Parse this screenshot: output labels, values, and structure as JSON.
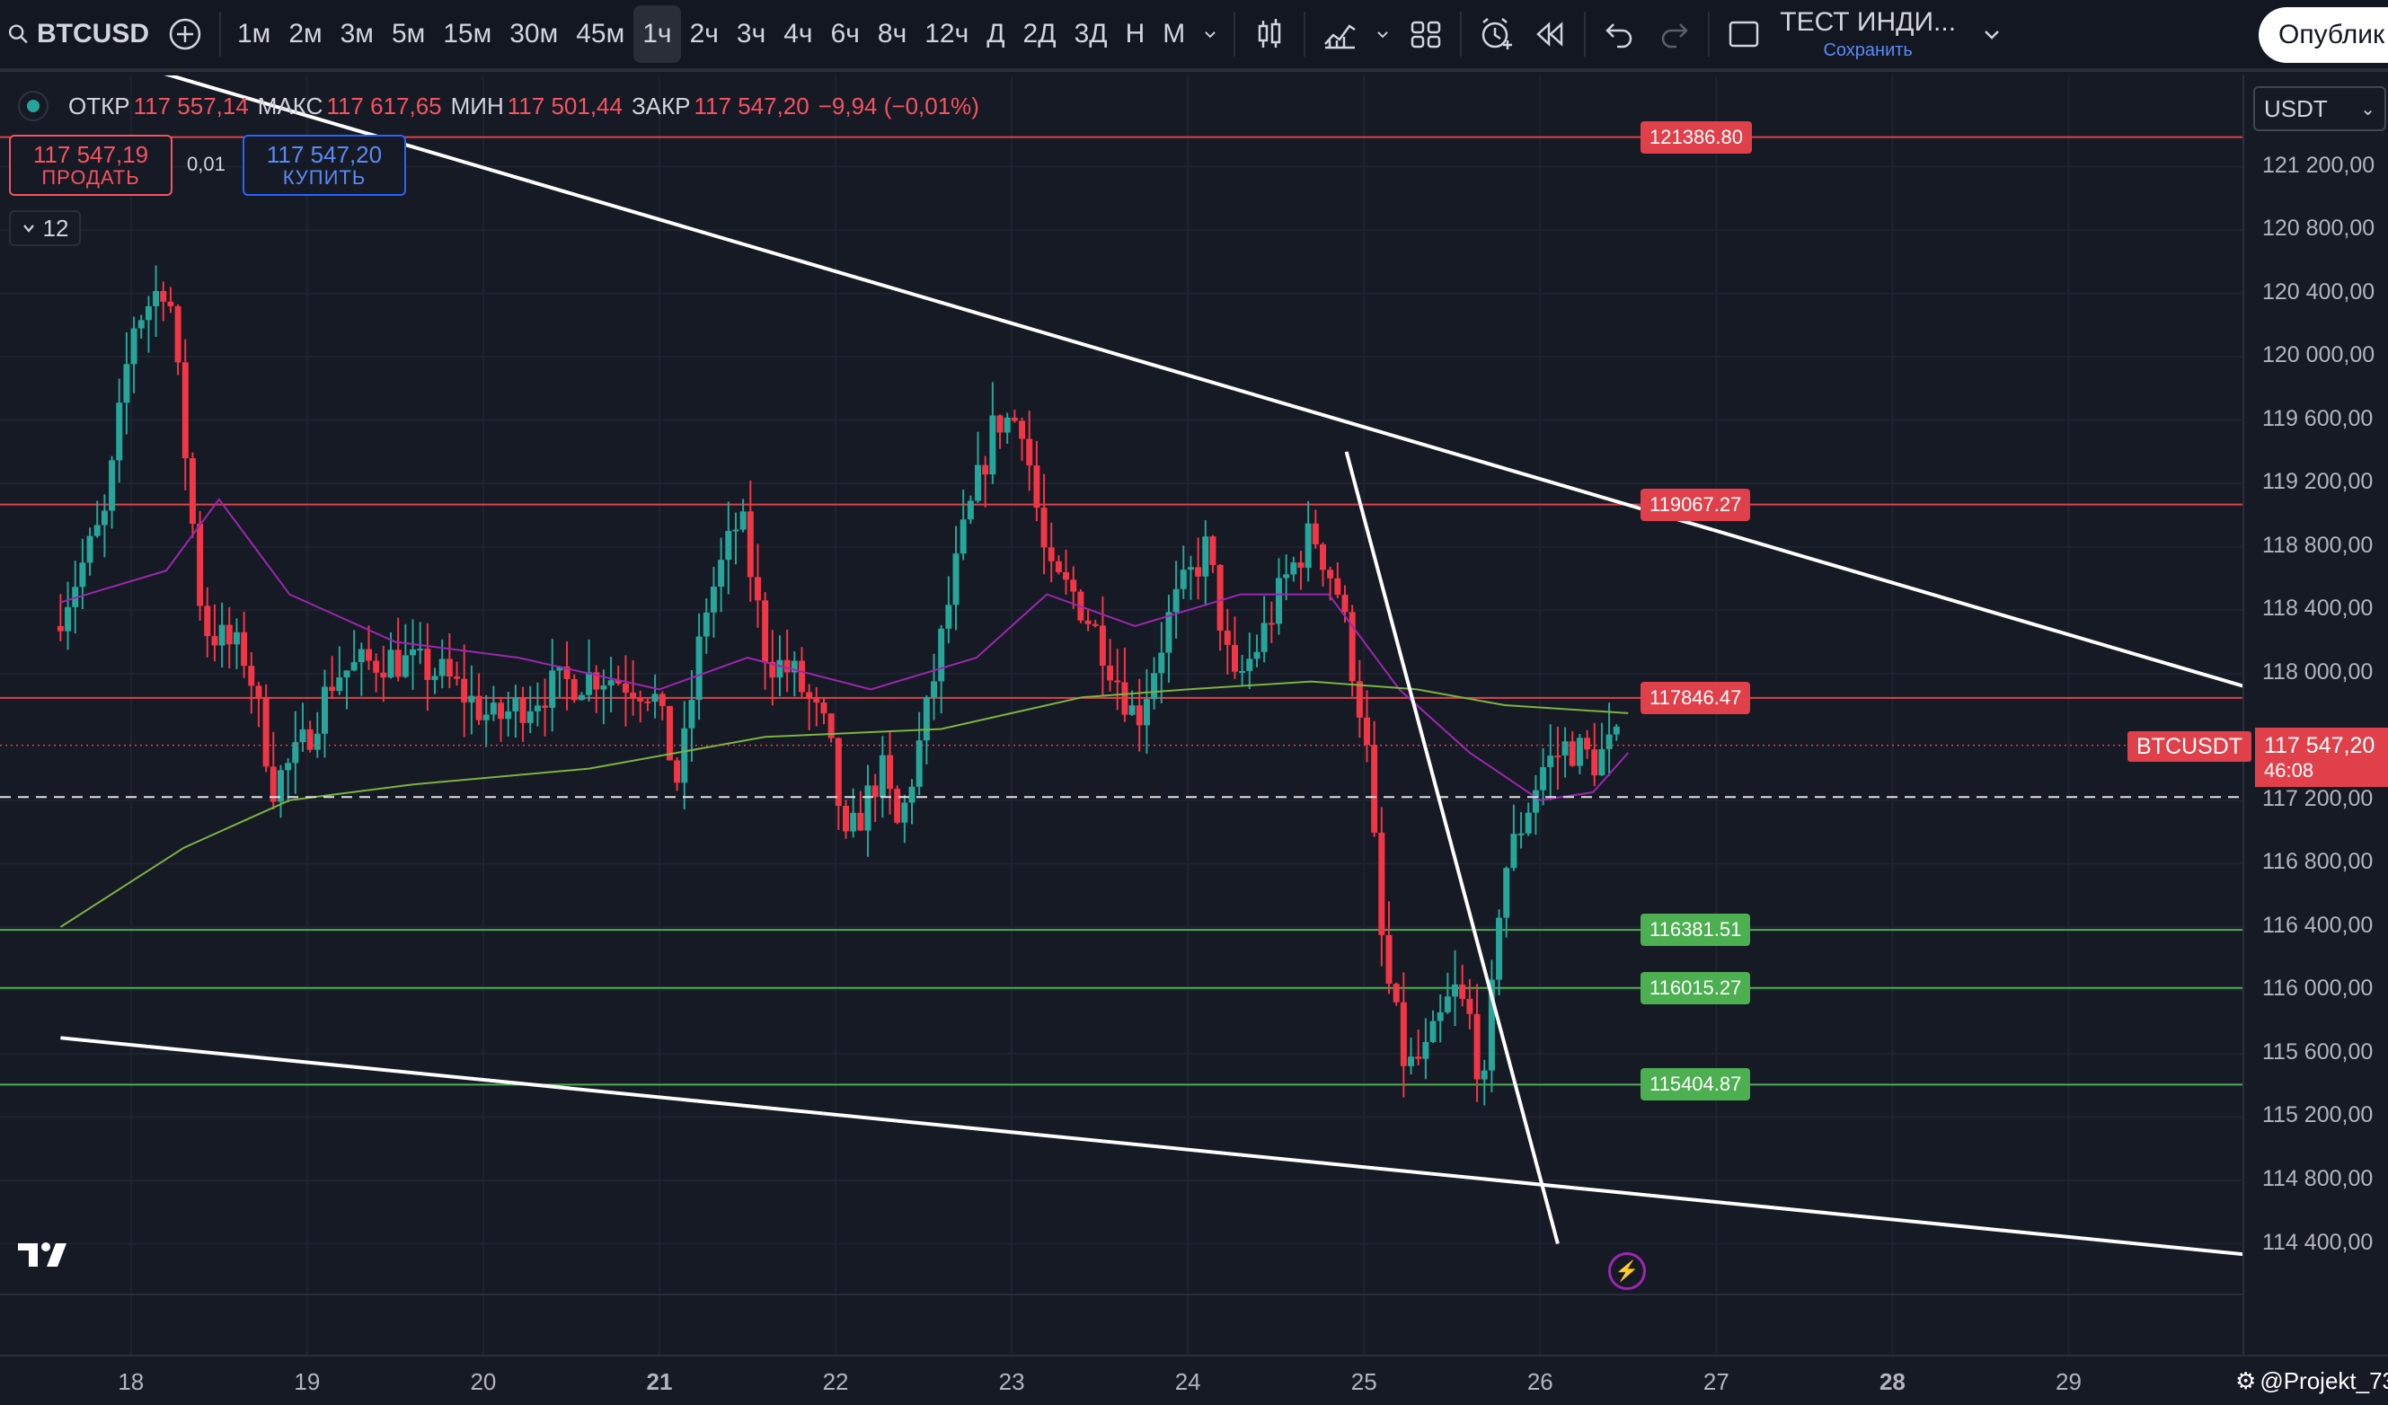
{
  "toolbar": {
    "symbol": "BTCUSD",
    "intervals": [
      "1м",
      "2м",
      "3м",
      "5м",
      "15м",
      "30м",
      "45м",
      "1ч",
      "2ч",
      "3ч",
      "4ч",
      "6ч",
      "8ч",
      "12ч",
      "Д",
      "2Д",
      "3Д",
      "Н",
      "М"
    ],
    "active_interval": "1ч",
    "layout_name": "ТЕСТ ИНДИ...",
    "layout_save": "Сохранить",
    "publish_label": "Опублик",
    "icons": [
      "search-icon",
      "add-compare-icon",
      "interval-dropdown-icon",
      "candles-icon",
      "indicators-icon",
      "indicators-dropdown-icon",
      "templates-icon",
      "alert-icon",
      "replay-icon",
      "undo-icon",
      "redo-icon",
      "fullscreen-icon",
      "layout-dropdown-icon"
    ]
  },
  "legend": {
    "open_label": "ОТКР",
    "open": "117 557,14",
    "high_label": "МАКС",
    "high": "117 617,65",
    "low_label": "МИН",
    "low": "117 501,44",
    "close_label": "ЗАКР",
    "close": "117 547,20",
    "change": "−9,94 (−0,01%)"
  },
  "trade": {
    "sell_price": "117 547,19",
    "sell_label": "ПРОДАТЬ",
    "buy_price": "117 547,20",
    "buy_label": "КУПИТЬ",
    "spread": "0,01"
  },
  "indicators_collapsed": {
    "count": "12"
  },
  "currency": "USDT",
  "price_scale": [
    "121 200,00",
    "120 800,00",
    "120 400,00",
    "120 000,00",
    "119 600,00",
    "119 200,00",
    "118 800,00",
    "118 400,00",
    "118 000,00",
    "117 200,00",
    "116 800,00",
    "116 400,00",
    "116 000,00",
    "115 600,00",
    "115 200,00",
    "114 800,00",
    "114 400,00"
  ],
  "time_scale": [
    "18",
    "19",
    "20",
    "21",
    "22",
    "23",
    "24",
    "25",
    "26",
    "27",
    "28",
    "29"
  ],
  "levels": [
    {
      "price": "121386.80",
      "color": "red"
    },
    {
      "price": "119067.27",
      "color": "red"
    },
    {
      "price": "117846.47",
      "color": "red"
    },
    {
      "price": "116381.51",
      "color": "green"
    },
    {
      "price": "116015.27",
      "color": "green"
    },
    {
      "price": "115404.87",
      "color": "green"
    }
  ],
  "last_price": {
    "symbol": "BTCUSDT",
    "price": "117 547,20",
    "countdown": "46:08"
  },
  "watermark": "@Projekt_73",
  "colors": {
    "up": "#26a69a",
    "down": "#f23645",
    "red_level": "#e0404a",
    "green_level": "#4caf50",
    "ma_fast": "#9c27b0",
    "ma_slow": "#7cb342",
    "trendline": "#ffffff"
  },
  "chart_data": {
    "type": "candlestick",
    "symbol": "BTCUSD",
    "interval": "1ч",
    "ylim": [
      114200,
      121500
    ],
    "x_ticks": [
      "18",
      "19",
      "20",
      "21",
      "22",
      "23",
      "24",
      "25",
      "26",
      "27",
      "28",
      "29"
    ],
    "path_anchors": [
      [
        17.6,
        118300
      ],
      [
        17.9,
        119000
      ],
      [
        18.05,
        120200
      ],
      [
        18.25,
        120500
      ],
      [
        18.45,
        118300
      ],
      [
        18.7,
        118100
      ],
      [
        18.85,
        117300
      ],
      [
        19.0,
        117500
      ],
      [
        19.2,
        118000
      ],
      [
        19.5,
        118100
      ],
      [
        19.8,
        118000
      ],
      [
        20.1,
        117700
      ],
      [
        20.4,
        117900
      ],
      [
        20.7,
        118000
      ],
      [
        21.0,
        117900
      ],
      [
        21.15,
        117300
      ],
      [
        21.3,
        118400
      ],
      [
        21.5,
        119000
      ],
      [
        21.65,
        118100
      ],
      [
        21.8,
        118000
      ],
      [
        22.0,
        117600
      ],
      [
        22.1,
        116900
      ],
      [
        22.3,
        117400
      ],
      [
        22.4,
        117000
      ],
      [
        22.55,
        117700
      ],
      [
        22.75,
        118800
      ],
      [
        22.95,
        119600
      ],
      [
        23.1,
        119600
      ],
      [
        23.25,
        118600
      ],
      [
        23.4,
        118500
      ],
      [
        23.55,
        118200
      ],
      [
        23.75,
        117700
      ],
      [
        23.95,
        118400
      ],
      [
        24.15,
        118800
      ],
      [
        24.3,
        117900
      ],
      [
        24.45,
        118200
      ],
      [
        24.6,
        118600
      ],
      [
        24.75,
        118900
      ],
      [
        24.9,
        118500
      ],
      [
        25.05,
        117600
      ],
      [
        25.15,
        116200
      ],
      [
        25.28,
        115500
      ],
      [
        25.4,
        115600
      ],
      [
        25.55,
        116000
      ],
      [
        25.65,
        115800
      ],
      [
        25.72,
        115300
      ],
      [
        25.82,
        116700
      ],
      [
        25.92,
        117000
      ],
      [
        26.05,
        117400
      ],
      [
        26.2,
        117550
      ],
      [
        26.35,
        117450
      ],
      [
        26.45,
        117547
      ]
    ],
    "moving_averages": [
      {
        "color": "#9c27b0",
        "points": [
          [
            17.6,
            118450
          ],
          [
            18.2,
            118650
          ],
          [
            18.5,
            119100
          ],
          [
            18.9,
            118500
          ],
          [
            19.5,
            118200
          ],
          [
            20.2,
            118100
          ],
          [
            21.0,
            117900
          ],
          [
            21.5,
            118100
          ],
          [
            22.2,
            117900
          ],
          [
            22.8,
            118100
          ],
          [
            23.2,
            118500
          ],
          [
            23.7,
            118300
          ],
          [
            24.3,
            118500
          ],
          [
            24.8,
            118500
          ],
          [
            25.2,
            117900
          ],
          [
            25.6,
            117500
          ],
          [
            26.0,
            117200
          ],
          [
            26.3,
            117250
          ],
          [
            26.5,
            117500
          ]
        ]
      },
      {
        "color": "#7cb342",
        "points": [
          [
            17.6,
            116400
          ],
          [
            18.3,
            116900
          ],
          [
            18.9,
            117200
          ],
          [
            19.6,
            117300
          ],
          [
            20.6,
            117400
          ],
          [
            21.6,
            117600
          ],
          [
            22.6,
            117650
          ],
          [
            23.4,
            117850
          ],
          [
            24.0,
            117900
          ],
          [
            24.7,
            117950
          ],
          [
            25.3,
            117900
          ],
          [
            25.8,
            117800
          ],
          [
            26.5,
            117750
          ]
        ]
      }
    ],
    "trendlines": [
      [
        [
          18.15,
          121800
        ],
        [
          30.3,
          117820
        ]
      ],
      [
        [
          17.6,
          115700
        ],
        [
          30.3,
          114300
        ]
      ],
      [
        [
          24.9,
          119400
        ],
        [
          26.1,
          114400
        ]
      ]
    ],
    "horizontal_levels": [
      121386.8,
      119067.27,
      117846.47,
      116381.51,
      116015.27,
      115404.87
    ],
    "last_price": 117547.2
  }
}
